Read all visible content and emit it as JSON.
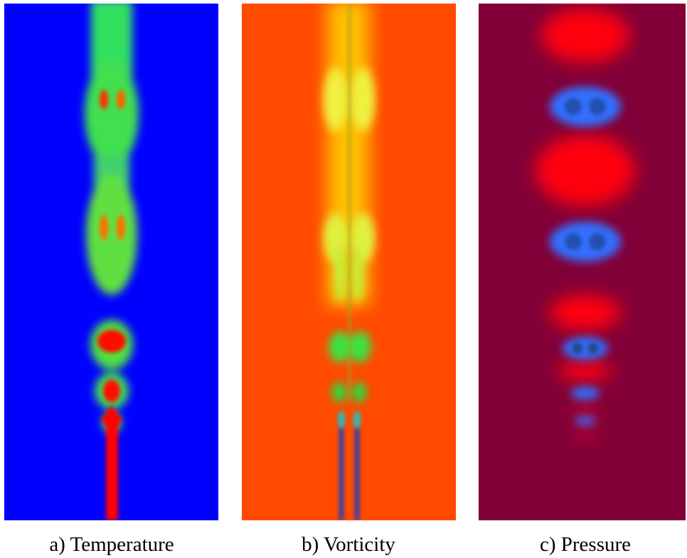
{
  "panels": [
    {
      "caption": "a) Temperature"
    },
    {
      "caption": "b) Vorticity"
    },
    {
      "caption": "c) Pressure"
    }
  ]
}
